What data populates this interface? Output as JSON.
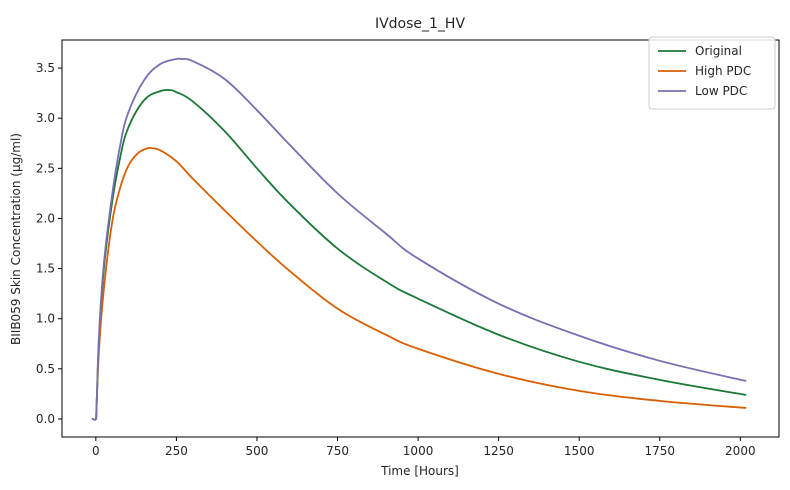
{
  "chart_data": {
    "type": "line",
    "title": "IVdose_1_HV",
    "xlabel": "Time [Hours]",
    "ylabel": "BIIB059 Skin Concentration (µg/ml)",
    "xlim": [
      -105,
      2120
    ],
    "ylim": [
      -0.18,
      3.78
    ],
    "xticks": [
      0,
      250,
      500,
      750,
      1000,
      1250,
      1500,
      1750,
      2000
    ],
    "xtick_labels": [
      "0",
      "250",
      "500",
      "750",
      "1000",
      "1250",
      "1500",
      "1750",
      "2000"
    ],
    "yticks": [
      0.0,
      0.5,
      1.0,
      1.5,
      2.0,
      2.5,
      3.0,
      3.5
    ],
    "ytick_labels": [
      "0.0",
      "0.5",
      "1.0",
      "1.5",
      "2.0",
      "2.5",
      "3.0",
      "3.5"
    ],
    "grid": false,
    "legend_position": "top-right",
    "series": [
      {
        "name": "Original",
        "color": "#1b7837",
        "x": [
          -10,
          0,
          2,
          10,
          25,
          50,
          75,
          100,
          150,
          200,
          230,
          250,
          300,
          400,
          500,
          600,
          750,
          900,
          1000,
          1250,
          1500,
          1750,
          2016
        ],
        "y": [
          0.0,
          0.0,
          0.1,
          0.8,
          1.5,
          2.15,
          2.6,
          2.9,
          3.18,
          3.27,
          3.28,
          3.26,
          3.17,
          2.87,
          2.5,
          2.15,
          1.7,
          1.37,
          1.2,
          0.84,
          0.57,
          0.39,
          0.24
        ]
      },
      {
        "name": "High PDC",
        "color": "#d95f02",
        "x": [
          -10,
          0,
          2,
          10,
          25,
          50,
          75,
          100,
          130,
          160,
          175,
          200,
          250,
          300,
          400,
          500,
          600,
          750,
          900,
          1000,
          1250,
          1500,
          1750,
          2016
        ],
        "y": [
          0.0,
          0.0,
          0.1,
          0.7,
          1.3,
          1.95,
          2.3,
          2.52,
          2.65,
          2.7,
          2.7,
          2.68,
          2.57,
          2.4,
          2.08,
          1.77,
          1.48,
          1.1,
          0.84,
          0.7,
          0.45,
          0.28,
          0.18,
          0.11
        ]
      },
      {
        "name": "Low PDC",
        "color": "#7570b3",
        "x": [
          -10,
          0,
          2,
          10,
          25,
          50,
          75,
          100,
          150,
          200,
          250,
          265,
          300,
          400,
          500,
          600,
          750,
          900,
          1000,
          1250,
          1500,
          1750,
          2016
        ],
        "y": [
          0.0,
          0.0,
          0.1,
          0.85,
          1.55,
          2.22,
          2.72,
          3.05,
          3.38,
          3.54,
          3.59,
          3.59,
          3.57,
          3.39,
          3.08,
          2.74,
          2.25,
          1.85,
          1.6,
          1.15,
          0.83,
          0.58,
          0.38
        ]
      }
    ]
  }
}
